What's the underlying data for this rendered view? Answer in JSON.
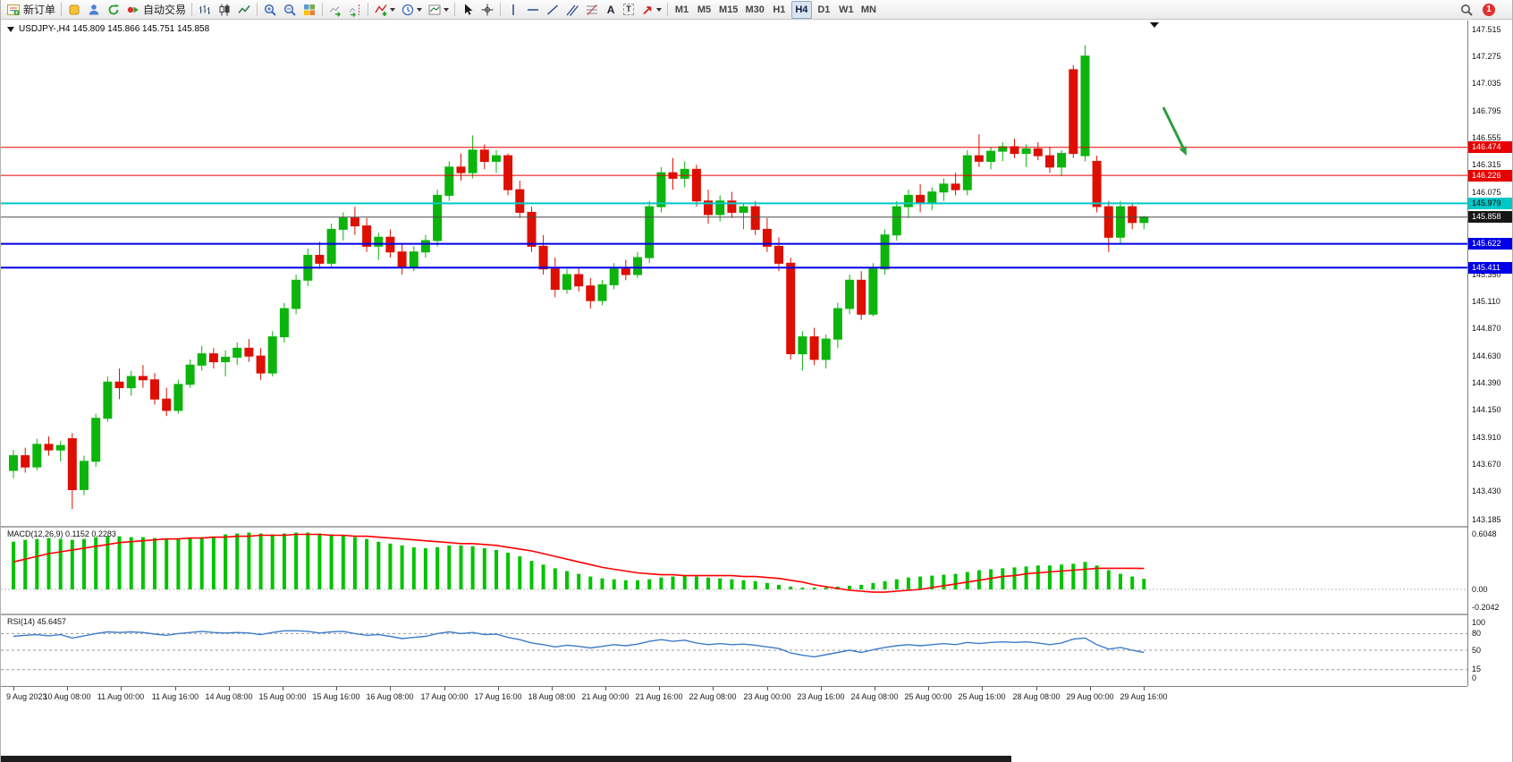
{
  "toolbar": {
    "new_order": "新订单",
    "auto_trading": "自动交易",
    "timeframes": [
      "M1",
      "M5",
      "M15",
      "M30",
      "H1",
      "H4",
      "D1",
      "W1",
      "MN"
    ],
    "active_timeframe": "H4",
    "notification_count": "1",
    "icons": {
      "text_tool": "A",
      "label_tool": "T"
    }
  },
  "chart": {
    "title": "USDJPY-,H4 145.809 145.866 145.751 145.858",
    "macd_label": "MACD(12,26,9) 0.1152 0.2283",
    "rsi_label": "RSI(14) 45.6457"
  },
  "chart_data": {
    "type": "candlestick",
    "symbol": "USDJPY-",
    "timeframe": "H4",
    "price_range": [
      143.185,
      147.515
    ],
    "y_ticks": [
      "147.515",
      "147.275",
      "147.035",
      "146.795",
      "146.555",
      "146.315",
      "146.075",
      "145.835",
      "145.595",
      "145.350",
      "145.110",
      "144.870",
      "144.630",
      "144.390",
      "144.150",
      "143.910",
      "143.670",
      "143.430",
      "143.185"
    ],
    "x_ticks": [
      "9 Aug 2023",
      "10 Aug 08:00",
      "11 Aug 00:00",
      "11 Aug 16:00",
      "14 Aug 08:00",
      "15 Aug 00:00",
      "15 Aug 16:00",
      "16 Aug 08:00",
      "17 Aug 00:00",
      "17 Aug 16:00",
      "18 Aug 08:00",
      "21 Aug 00:00",
      "21 Aug 16:00",
      "22 Aug 08:00",
      "23 Aug 00:00",
      "23 Aug 16:00",
      "24 Aug 08:00",
      "25 Aug 00:00",
      "25 Aug 16:00",
      "28 Aug 08:00",
      "29 Aug 00:00",
      "29 Aug 16:00"
    ],
    "hlines": [
      {
        "label": "146.474",
        "price": 146.474,
        "line_color": "#e80000",
        "line_width": 1,
        "tag_bg": "#e80000",
        "tag_fg": "#ffffff"
      },
      {
        "label": "146.226",
        "price": 146.226,
        "line_color": "#e80000",
        "line_width": 1,
        "tag_bg": "#e80000",
        "tag_fg": "#ffffff"
      },
      {
        "label": "145.979",
        "price": 145.979,
        "line_color": "#00c8c8",
        "line_width": 2,
        "tag_bg": "#00c8c8",
        "tag_fg": "#000000"
      },
      {
        "label": "145.858",
        "price": 145.858,
        "line_color": "#4d4d4d",
        "line_width": 1,
        "tag_bg": "#161616",
        "tag_fg": "#ffffff"
      },
      {
        "label": "145.622",
        "price": 145.622,
        "line_color": "#0000e8",
        "line_width": 2,
        "tag_bg": "#0000e8",
        "tag_fg": "#ffffff"
      },
      {
        "label": "145.411",
        "price": 145.411,
        "line_color": "#0000e8",
        "line_width": 2,
        "tag_bg": "#0000e8",
        "tag_fg": "#ffffff"
      }
    ],
    "ohlc": [
      [
        143.62,
        143.8,
        143.55,
        143.75
      ],
      [
        143.75,
        143.82,
        143.6,
        143.65
      ],
      [
        143.65,
        143.9,
        143.62,
        143.85
      ],
      [
        143.85,
        143.92,
        143.75,
        143.8
      ],
      [
        143.8,
        143.88,
        143.7,
        143.84
      ],
      [
        143.9,
        143.95,
        143.28,
        143.45
      ],
      [
        143.45,
        143.75,
        143.4,
        143.7
      ],
      [
        143.7,
        144.12,
        143.65,
        144.08
      ],
      [
        144.08,
        144.45,
        144.05,
        144.4
      ],
      [
        144.4,
        144.52,
        144.25,
        144.35
      ],
      [
        144.35,
        144.5,
        144.28,
        144.45
      ],
      [
        144.45,
        144.55,
        144.35,
        144.42
      ],
      [
        144.42,
        144.48,
        144.2,
        144.25
      ],
      [
        144.25,
        144.35,
        144.1,
        144.15
      ],
      [
        144.15,
        144.42,
        144.12,
        144.38
      ],
      [
        144.38,
        144.6,
        144.35,
        144.55
      ],
      [
        144.55,
        144.72,
        144.5,
        144.65
      ],
      [
        144.65,
        144.7,
        144.52,
        144.58
      ],
      [
        144.58,
        144.68,
        144.45,
        144.62
      ],
      [
        144.62,
        144.75,
        144.55,
        144.7
      ],
      [
        144.7,
        144.78,
        144.58,
        144.63
      ],
      [
        144.63,
        144.7,
        144.42,
        144.48
      ],
      [
        144.48,
        144.85,
        144.45,
        144.8
      ],
      [
        144.8,
        145.1,
        144.75,
        145.05
      ],
      [
        145.05,
        145.35,
        145.0,
        145.3
      ],
      [
        145.3,
        145.58,
        145.25,
        145.52
      ],
      [
        145.52,
        145.64,
        145.4,
        145.45
      ],
      [
        145.45,
        145.8,
        145.42,
        145.75
      ],
      [
        145.75,
        145.9,
        145.65,
        145.85
      ],
      [
        145.85,
        145.95,
        145.7,
        145.78
      ],
      [
        145.78,
        145.85,
        145.55,
        145.6
      ],
      [
        145.6,
        145.72,
        145.48,
        145.68
      ],
      [
        145.68,
        145.75,
        145.5,
        145.55
      ],
      [
        145.55,
        145.62,
        145.35,
        145.42
      ],
      [
        145.42,
        145.6,
        145.38,
        145.55
      ],
      [
        145.55,
        145.7,
        145.5,
        145.65
      ],
      [
        145.65,
        146.1,
        145.6,
        146.05
      ],
      [
        146.05,
        146.35,
        146.0,
        146.3
      ],
      [
        146.3,
        146.42,
        146.18,
        146.25
      ],
      [
        146.25,
        146.58,
        146.2,
        146.45
      ],
      [
        146.45,
        146.5,
        146.28,
        146.35
      ],
      [
        146.35,
        146.45,
        146.25,
        146.4
      ],
      [
        146.4,
        146.42,
        146.05,
        146.1
      ],
      [
        146.1,
        146.18,
        145.85,
        145.9
      ],
      [
        145.9,
        145.95,
        145.55,
        145.6
      ],
      [
        145.6,
        145.7,
        145.35,
        145.4
      ],
      [
        145.4,
        145.5,
        145.15,
        145.22
      ],
      [
        145.22,
        145.4,
        145.18,
        145.35
      ],
      [
        145.35,
        145.42,
        145.2,
        145.25
      ],
      [
        145.25,
        145.32,
        145.05,
        145.12
      ],
      [
        145.12,
        145.3,
        145.08,
        145.26
      ],
      [
        145.26,
        145.45,
        145.22,
        145.4
      ],
      [
        145.4,
        145.48,
        145.3,
        145.35
      ],
      [
        145.35,
        145.55,
        145.32,
        145.5
      ],
      [
        145.5,
        146.0,
        145.45,
        145.95
      ],
      [
        145.95,
        146.3,
        145.9,
        146.25
      ],
      [
        146.25,
        146.38,
        146.1,
        146.2
      ],
      [
        146.2,
        146.35,
        146.12,
        146.28
      ],
      [
        146.28,
        146.32,
        145.95,
        146.0
      ],
      [
        146.0,
        146.1,
        145.8,
        145.88
      ],
      [
        145.88,
        146.05,
        145.82,
        146.0
      ],
      [
        146.0,
        146.08,
        145.85,
        145.9
      ],
      [
        145.9,
        145.98,
        145.75,
        145.95
      ],
      [
        145.95,
        146.0,
        145.7,
        145.75
      ],
      [
        145.75,
        145.85,
        145.55,
        145.6
      ],
      [
        145.6,
        145.68,
        145.38,
        145.45
      ],
      [
        145.45,
        145.5,
        144.6,
        144.65
      ],
      [
        144.65,
        144.85,
        144.5,
        144.8
      ],
      [
        144.8,
        144.88,
        144.55,
        144.6
      ],
      [
        144.6,
        144.82,
        144.52,
        144.78
      ],
      [
        144.78,
        145.1,
        144.7,
        145.05
      ],
      [
        145.05,
        145.35,
        145.0,
        145.3
      ],
      [
        145.3,
        145.38,
        144.95,
        145.0
      ],
      [
        145.0,
        145.45,
        144.98,
        145.4
      ],
      [
        145.4,
        145.75,
        145.35,
        145.7
      ],
      [
        145.7,
        146.0,
        145.65,
        145.95
      ],
      [
        145.95,
        146.1,
        145.85,
        146.05
      ],
      [
        146.05,
        146.15,
        145.9,
        145.98
      ],
      [
        145.98,
        146.12,
        145.92,
        146.08
      ],
      [
        146.08,
        146.2,
        146.0,
        146.15
      ],
      [
        146.15,
        146.25,
        146.05,
        146.1
      ],
      [
        146.1,
        146.45,
        146.05,
        146.4
      ],
      [
        146.4,
        146.59,
        146.3,
        146.35
      ],
      [
        146.35,
        146.48,
        146.28,
        146.44
      ],
      [
        146.44,
        146.52,
        146.35,
        146.48
      ],
      [
        146.48,
        146.55,
        146.38,
        146.42
      ],
      [
        146.42,
        146.5,
        146.3,
        146.46
      ],
      [
        146.46,
        146.52,
        146.36,
        146.4
      ],
      [
        146.4,
        146.48,
        146.25,
        146.3
      ],
      [
        146.3,
        146.45,
        146.22,
        146.42
      ],
      [
        147.16,
        147.2,
        146.38,
        146.42
      ],
      [
        146.4,
        147.375,
        146.35,
        147.28
      ],
      [
        146.35,
        146.4,
        145.9,
        145.95
      ],
      [
        145.95,
        146.0,
        145.55,
        145.68
      ],
      [
        145.68,
        146.0,
        145.62,
        145.95
      ],
      [
        145.95,
        145.98,
        145.75,
        145.81
      ],
      [
        145.81,
        145.87,
        145.75,
        145.86
      ]
    ],
    "macd": {
      "axis_ticks": [
        "0.6048",
        "0.00",
        "-0.2042"
      ],
      "hist": [
        0.52,
        0.54,
        0.55,
        0.56,
        0.55,
        0.54,
        0.55,
        0.57,
        0.58,
        0.58,
        0.57,
        0.57,
        0.56,
        0.55,
        0.55,
        0.56,
        0.57,
        0.57,
        0.6,
        0.61,
        0.62,
        0.61,
        0.6,
        0.61,
        0.62,
        0.62,
        0.61,
        0.6,
        0.59,
        0.57,
        0.55,
        0.52,
        0.5,
        0.48,
        0.46,
        0.45,
        0.46,
        0.48,
        0.48,
        0.47,
        0.45,
        0.43,
        0.4,
        0.36,
        0.31,
        0.27,
        0.23,
        0.2,
        0.17,
        0.14,
        0.12,
        0.11,
        0.1,
        0.1,
        0.11,
        0.13,
        0.14,
        0.15,
        0.14,
        0.13,
        0.12,
        0.11,
        0.1,
        0.09,
        0.07,
        0.05,
        0.03,
        0.02,
        0.02,
        0.02,
        0.03,
        0.04,
        0.05,
        0.07,
        0.09,
        0.11,
        0.13,
        0.14,
        0.15,
        0.16,
        0.17,
        0.19,
        0.21,
        0.22,
        0.23,
        0.24,
        0.25,
        0.26,
        0.26,
        0.27,
        0.28,
        0.3,
        0.26,
        0.21,
        0.17,
        0.14,
        0.115
      ],
      "signal": [
        0.3,
        0.33,
        0.36,
        0.39,
        0.41,
        0.43,
        0.45,
        0.47,
        0.49,
        0.51,
        0.52,
        0.53,
        0.54,
        0.55,
        0.55,
        0.56,
        0.56,
        0.57,
        0.57,
        0.58,
        0.58,
        0.59,
        0.59,
        0.59,
        0.6,
        0.6,
        0.6,
        0.59,
        0.59,
        0.58,
        0.58,
        0.57,
        0.56,
        0.55,
        0.54,
        0.53,
        0.52,
        0.51,
        0.5,
        0.5,
        0.49,
        0.48,
        0.46,
        0.44,
        0.42,
        0.39,
        0.36,
        0.33,
        0.3,
        0.27,
        0.24,
        0.22,
        0.2,
        0.18,
        0.17,
        0.16,
        0.16,
        0.15,
        0.15,
        0.15,
        0.15,
        0.15,
        0.14,
        0.14,
        0.13,
        0.12,
        0.1,
        0.08,
        0.05,
        0.03,
        0.01,
        -0.01,
        -0.02,
        -0.03,
        -0.03,
        -0.02,
        -0.01,
        0.0,
        0.02,
        0.04,
        0.06,
        0.08,
        0.1,
        0.12,
        0.14,
        0.15,
        0.17,
        0.18,
        0.19,
        0.2,
        0.21,
        0.22,
        0.23,
        0.23,
        0.23,
        0.23,
        0.228
      ]
    },
    "rsi": {
      "axis_ticks": [
        "100",
        "80",
        "50",
        "15",
        "0"
      ],
      "levels": [
        80,
        50,
        15
      ],
      "values": [
        75,
        77,
        78,
        76,
        78,
        72,
        76,
        80,
        83,
        82,
        83,
        82,
        79,
        77,
        80,
        82,
        84,
        82,
        81,
        82,
        81,
        78,
        82,
        85,
        85,
        84,
        81,
        83,
        84,
        80,
        77,
        78,
        75,
        71,
        73,
        75,
        80,
        83,
        80,
        82,
        78,
        79,
        73,
        69,
        63,
        60,
        56,
        59,
        57,
        54,
        57,
        60,
        58,
        61,
        66,
        69,
        66,
        68,
        63,
        60,
        62,
        60,
        61,
        59,
        56,
        53,
        45,
        41,
        38,
        42,
        46,
        50,
        46,
        51,
        55,
        58,
        60,
        58,
        60,
        62,
        60,
        64,
        62,
        64,
        65,
        64,
        65,
        63,
        60,
        63,
        70,
        72,
        60,
        52,
        55,
        50,
        46
      ]
    },
    "annotation": {
      "type": "arrow-down-right"
    },
    "colors": {
      "up": "#0db40d",
      "down": "#dd0f00",
      "macd_hist": "#00c400",
      "macd_signal": "#ff0000",
      "rsi_line": "#3d7dc8",
      "arrow": "#2e9e3f"
    }
  }
}
